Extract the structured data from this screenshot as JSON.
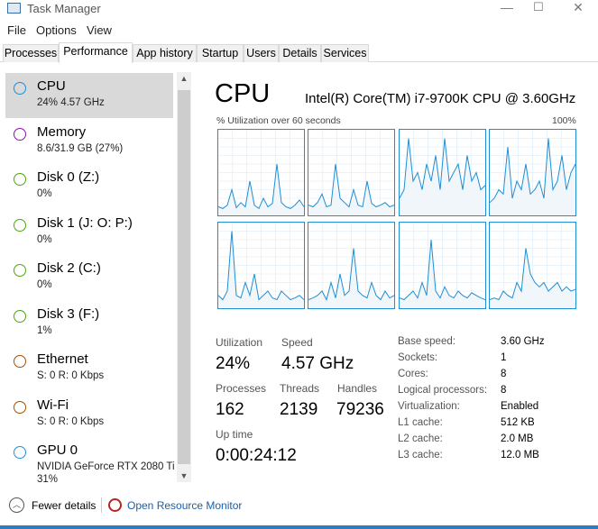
{
  "window": {
    "title": "Task Manager",
    "controls": [
      "minimize",
      "maximize",
      "close"
    ]
  },
  "menu": [
    "File",
    "Options",
    "View"
  ],
  "tabs": [
    {
      "label": "Processes"
    },
    {
      "label": "Performance",
      "active": true
    },
    {
      "label": "App history"
    },
    {
      "label": "Startup"
    },
    {
      "label": "Users"
    },
    {
      "label": "Details"
    },
    {
      "label": "Services"
    }
  ],
  "sidebar": [
    {
      "name": "CPU",
      "sub": "24% 4.57 GHz",
      "color": "#1e8fd6",
      "selected": true
    },
    {
      "name": "Memory",
      "sub": "8.6/31.9 GB (27%)",
      "color": "#8b12ae"
    },
    {
      "name": "Disk 0 (Z:)",
      "sub": "0%",
      "color": "#4da60c"
    },
    {
      "name": "Disk 1 (J: O: P:)",
      "sub": "0%",
      "color": "#4da60c"
    },
    {
      "name": "Disk 2 (C:)",
      "sub": "0%",
      "color": "#4da60c"
    },
    {
      "name": "Disk 3 (F:)",
      "sub": "1%",
      "color": "#4da60c"
    },
    {
      "name": "Ethernet",
      "sub": "S: 0 R: 0 Kbps",
      "color": "#a74f01"
    },
    {
      "name": "Wi-Fi",
      "sub": "S: 0 R: 0 Kbps",
      "color": "#a74f01"
    },
    {
      "name": "GPU 0",
      "sub": "NVIDIA GeForce RTX 2080 Ti",
      "sub2": "31%",
      "color": "#1e8fd6"
    }
  ],
  "main": {
    "heading": "CPU",
    "cpu_name": "Intel(R) Core(TM) i7-9700K CPU @ 3.60GHz",
    "graph_label": "% Utilization over 60 seconds",
    "graph_max": "100%",
    "stats": {
      "utilization_label": "Utilization",
      "utilization": "24%",
      "speed_label": "Speed",
      "speed": "4.57 GHz",
      "processes_label": "Processes",
      "processes": "162",
      "threads_label": "Threads",
      "threads": "2139",
      "handles_label": "Handles",
      "handles": "79236",
      "uptime_label": "Up time",
      "uptime": "0:00:24:12"
    },
    "specs": [
      [
        "Base speed:",
        "3.60 GHz"
      ],
      [
        "Sockets:",
        "1"
      ],
      [
        "Cores:",
        "8"
      ],
      [
        "Logical processors:",
        "8"
      ],
      [
        "Virtualization:",
        "Enabled"
      ],
      [
        "L1 cache:",
        "512 KB"
      ],
      [
        "L2 cache:",
        "2.0 MB"
      ],
      [
        "L3 cache:",
        "12.0 MB"
      ]
    ]
  },
  "chart_data": {
    "type": "area",
    "ylim": [
      0,
      100
    ],
    "grid": true,
    "color": "#1e8fd6",
    "series": [
      [
        10,
        8,
        12,
        30,
        9,
        15,
        10,
        40,
        12,
        8,
        20,
        10,
        14,
        60,
        15,
        10,
        8,
        12,
        18,
        10
      ],
      [
        12,
        10,
        15,
        25,
        10,
        12,
        60,
        20,
        15,
        10,
        30,
        12,
        10,
        40,
        14,
        10,
        12,
        15,
        10,
        12
      ],
      [
        20,
        30,
        90,
        40,
        50,
        30,
        60,
        40,
        70,
        30,
        90,
        40,
        50,
        60,
        30,
        70,
        40,
        50,
        30,
        35
      ],
      [
        15,
        20,
        30,
        25,
        80,
        20,
        40,
        30,
        60,
        25,
        30,
        40,
        20,
        90,
        30,
        40,
        70,
        30,
        50,
        60
      ],
      [
        15,
        10,
        20,
        90,
        15,
        12,
        30,
        15,
        40,
        10,
        15,
        20,
        12,
        10,
        20,
        15,
        10,
        12,
        15,
        10
      ],
      [
        10,
        12,
        15,
        20,
        10,
        30,
        12,
        40,
        15,
        20,
        70,
        20,
        15,
        12,
        30,
        15,
        10,
        20,
        12,
        15
      ],
      [
        12,
        10,
        15,
        20,
        12,
        30,
        15,
        80,
        20,
        12,
        25,
        15,
        12,
        20,
        15,
        12,
        18,
        15,
        12,
        10
      ],
      [
        10,
        12,
        10,
        20,
        15,
        12,
        30,
        20,
        70,
        40,
        30,
        25,
        30,
        20,
        25,
        30,
        20,
        25,
        20,
        22
      ]
    ]
  },
  "footer": {
    "fewer_details": "Fewer details",
    "resource_monitor": "Open Resource Monitor"
  }
}
